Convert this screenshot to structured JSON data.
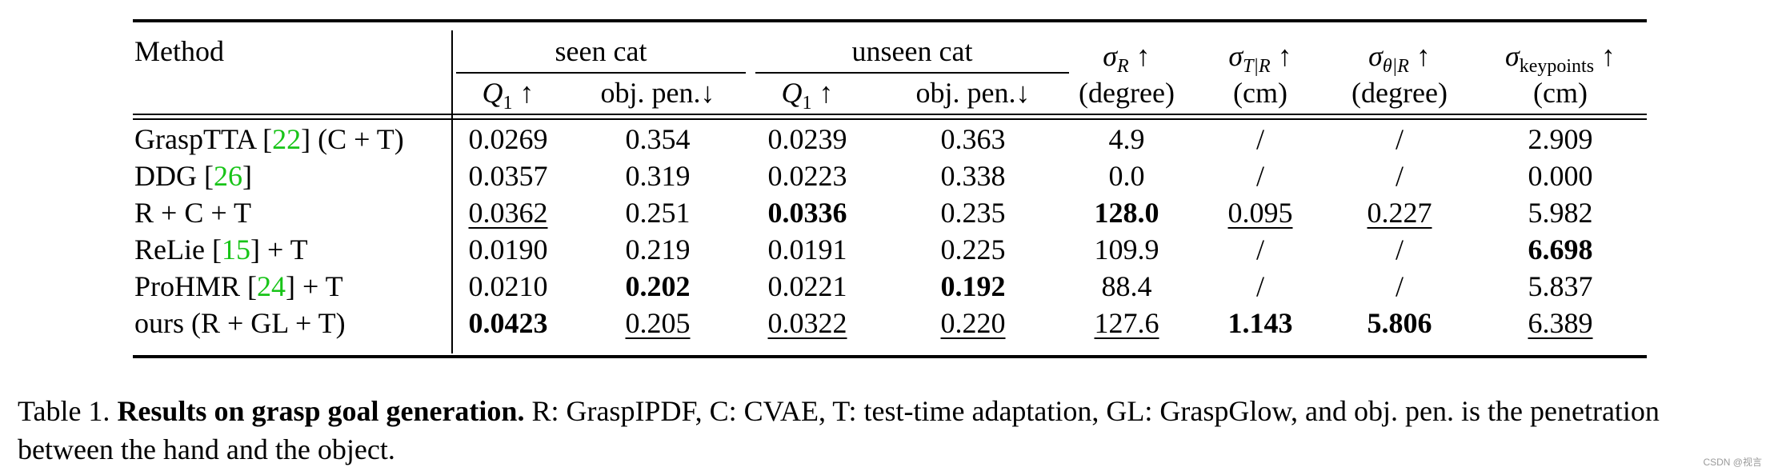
{
  "table": {
    "header": {
      "method": "Method",
      "group_seen": "seen cat",
      "group_unseen": "unseen cat",
      "q1_symbol": "Q",
      "q1_sub": "1",
      "q1_arrow": "↑",
      "objpen": "obj. pen.↓",
      "sigma_r": "σ",
      "sigma_r_sub": "R",
      "sigma_r_unit": "(degree)",
      "sigma_t": "σ",
      "sigma_t_sub": "T|R",
      "sigma_t_unit": "(cm)",
      "sigma_theta": "σ",
      "sigma_theta_sub": "θ|R",
      "sigma_theta_unit": "(degree)",
      "sigma_k": "σ",
      "sigma_k_sub": "keypoints",
      "sigma_k_unit": "(cm)",
      "arrow_up": "↑"
    },
    "rows": [
      {
        "name": "GraspTTA",
        "cite": "22",
        "suffix": " (C + T)",
        "values": [
          "0.0269",
          "0.354",
          "0.0239",
          "0.363",
          "4.9",
          "/",
          "/",
          "2.909"
        ],
        "bold": [],
        "underline": []
      },
      {
        "name": "DDG",
        "cite": "26",
        "suffix": "",
        "values": [
          "0.0357",
          "0.319",
          "0.0223",
          "0.338",
          "0.0",
          "/",
          "/",
          "0.000"
        ],
        "bold": [],
        "underline": []
      },
      {
        "name": "R + C + T",
        "cite": "",
        "suffix": "",
        "values": [
          "0.0362",
          "0.251",
          "0.0336",
          "0.235",
          "128.0",
          "0.095",
          "0.227",
          "5.982"
        ],
        "bold": [
          2,
          4
        ],
        "underline": [
          0,
          5,
          6
        ]
      },
      {
        "name": "ReLie",
        "cite": "15",
        "suffix": " + T",
        "values": [
          "0.0190",
          "0.219",
          "0.0191",
          "0.225",
          "109.9",
          "/",
          "/",
          "6.698"
        ],
        "bold": [
          7
        ],
        "underline": []
      },
      {
        "name": "ProHMR",
        "cite": "24",
        "suffix": " + T",
        "values": [
          "0.0210",
          "0.202",
          "0.0221",
          "0.192",
          "88.4",
          "/",
          "/",
          "5.837"
        ],
        "bold": [
          1,
          3
        ],
        "underline": []
      },
      {
        "name": "ours (R + GL + T)",
        "cite": "",
        "suffix": "",
        "values": [
          "0.0423",
          "0.205",
          "0.0322",
          "0.220",
          "127.6",
          "1.143",
          "5.806",
          "6.389"
        ],
        "bold": [
          0,
          5,
          6
        ],
        "underline": [
          1,
          2,
          3,
          4,
          7
        ]
      }
    ]
  },
  "caption": {
    "label": "Table 1.",
    "title": "Results on grasp goal generation.",
    "body": "R: GraspIPDF, C: CVAE, T: test-time adaptation, GL: GraspGlow, and obj. pen. is the penetration between the hand and the object."
  },
  "watermark": "CSDN @视言"
}
